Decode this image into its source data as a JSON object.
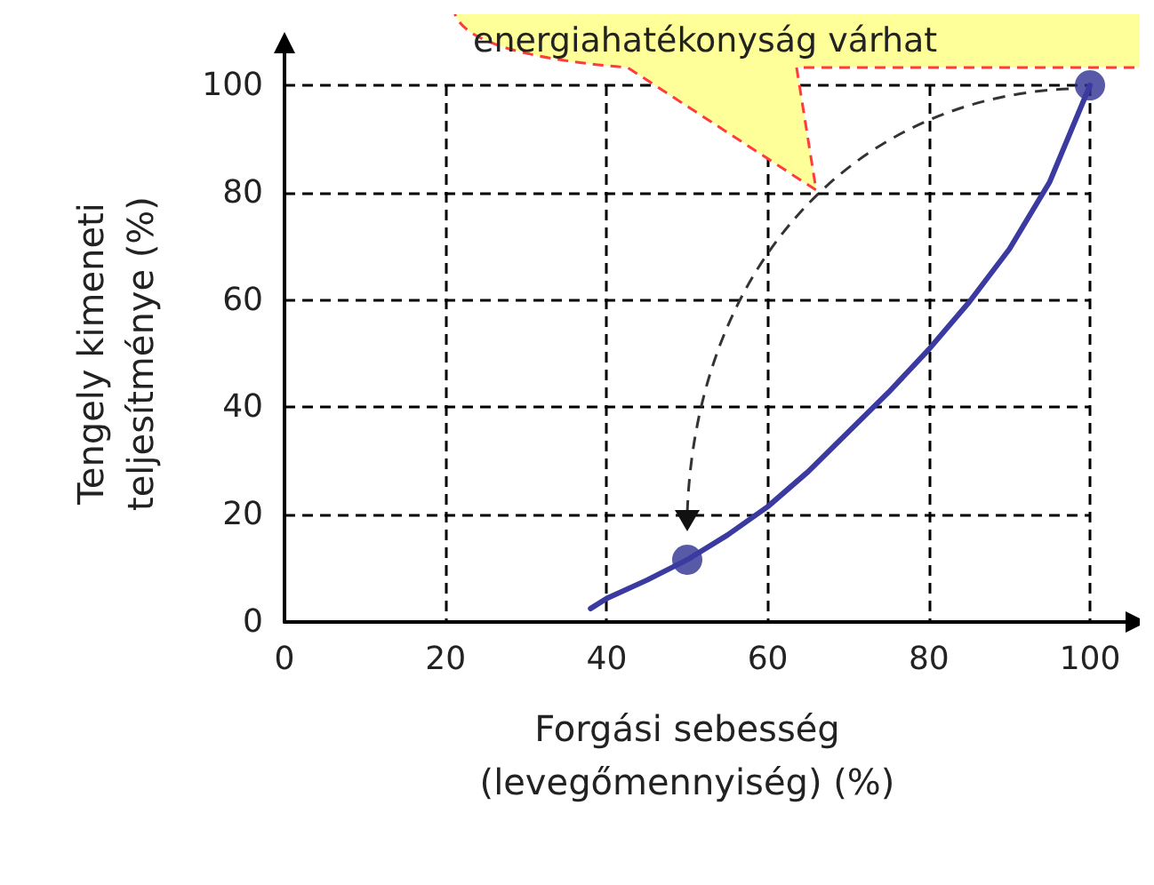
{
  "chart_data": {
    "type": "line",
    "xlabel": "Forgási sebesség (levegőmennyiség) (%)",
    "ylabel": "Tengely kimeneti teljesítménye (%)",
    "series": [
      {
        "color": "#3a3aa0",
        "marker": "none",
        "line_style": "solid",
        "x": [
          38,
          40,
          45,
          50,
          55,
          60,
          65,
          70,
          75,
          80,
          85,
          90,
          95,
          100
        ],
        "values": [
          2.5,
          4.4,
          7.8,
          11.6,
          16.2,
          21.5,
          28,
          35.4,
          42.8,
          50.8,
          59.6,
          69.5,
          82,
          100
        ]
      },
      {
        "type": "scatter",
        "color": "#2e3192",
        "marker": "circle",
        "x": [
          50,
          100
        ],
        "values": [
          11.6,
          100
        ]
      }
    ],
    "xlim": [
      0,
      100
    ],
    "ylim": [
      0,
      100
    ],
    "xticks": [
      0,
      20,
      40,
      60,
      80,
      100
    ],
    "yticks": [
      0,
      20,
      40,
      60,
      80,
      100
    ],
    "grid": true,
    "annotations": [
      "energiahatékonyság várhat"
    ]
  }
}
